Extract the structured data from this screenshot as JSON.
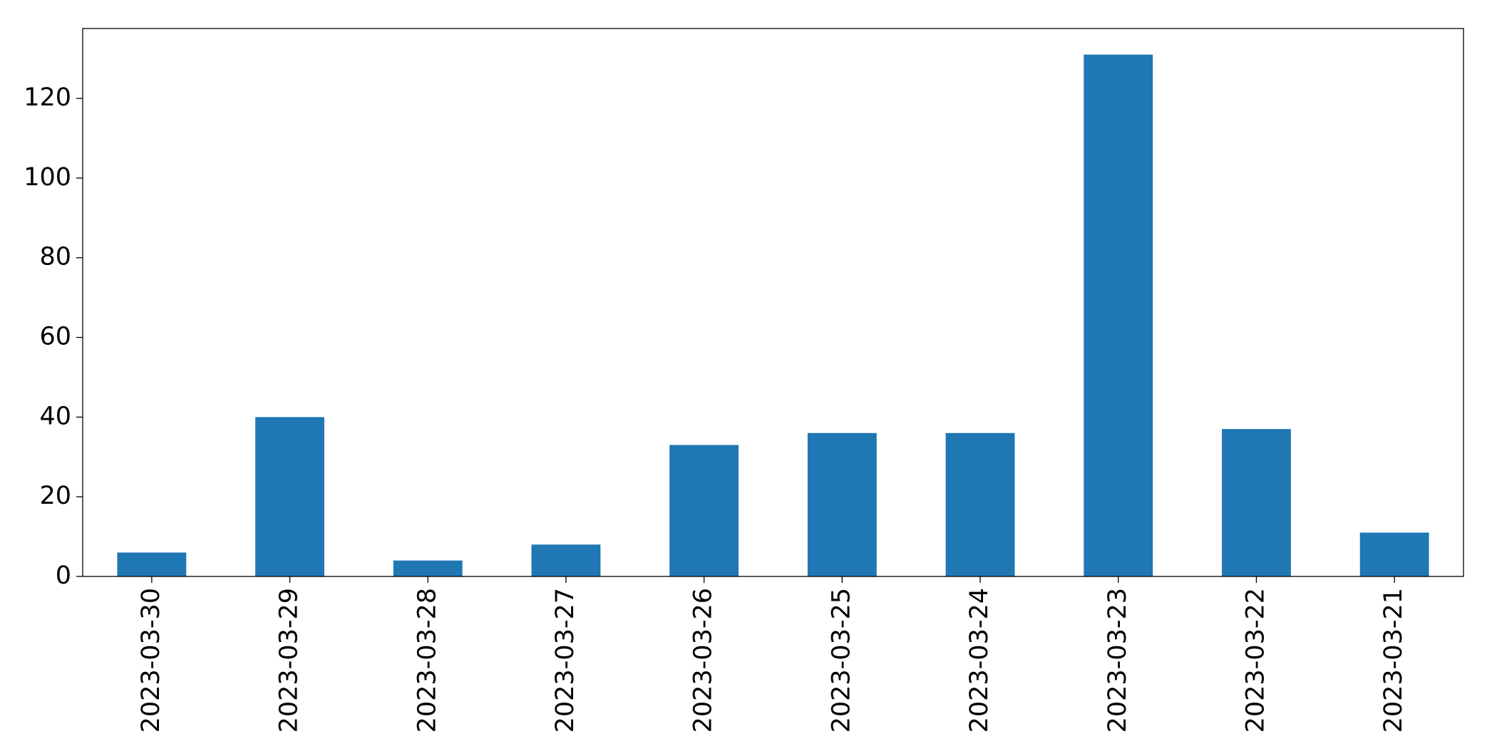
{
  "chart_data": {
    "type": "bar",
    "categories": [
      "2023-03-30",
      "2023-03-29",
      "2023-03-28",
      "2023-03-27",
      "2023-03-26",
      "2023-03-25",
      "2023-03-24",
      "2023-03-23",
      "2023-03-22",
      "2023-03-21"
    ],
    "values": [
      6,
      40,
      4,
      8,
      33,
      36,
      36,
      131,
      37,
      11
    ],
    "color": "#1f77b4",
    "ylim": [
      0,
      137.55
    ],
    "yticks": [
      0,
      20,
      40,
      60,
      80,
      100,
      120
    ],
    "grid": false
  }
}
